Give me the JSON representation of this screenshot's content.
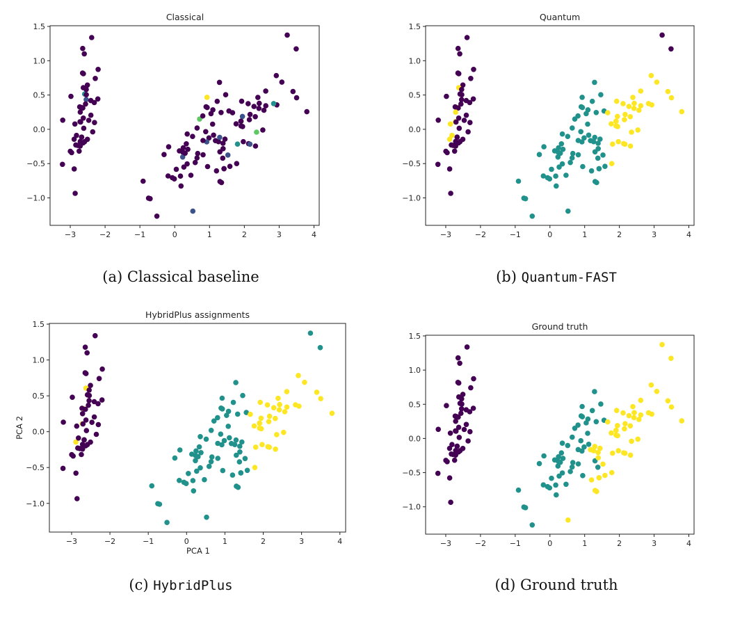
{
  "chart_data": {
    "type": "scatter",
    "xlim": [
      -3.58,
      4.15
    ],
    "ylim": [
      -1.4,
      1.51
    ],
    "xticks": [
      -3,
      -2,
      -1,
      0,
      1,
      2,
      3,
      4
    ],
    "xtick_labels": [
      "−3",
      "−2",
      "−1",
      "0",
      "1",
      "2",
      "3",
      "4"
    ],
    "yticks": [
      -1.0,
      -0.5,
      0.0,
      0.5,
      1.0,
      1.5
    ],
    "ytick_labels": [
      "−1.0",
      "−0.5",
      "0.0",
      "0.5",
      "1.0",
      "1.5"
    ],
    "grid": false,
    "points": {
      "x": [
        -2.684,
        -2.714,
        -2.889,
        -2.745,
        -2.729,
        -2.281,
        -2.821,
        -2.626,
        -2.887,
        -2.673,
        -2.507,
        -2.613,
        -2.787,
        -3.225,
        -2.644,
        -2.386,
        -2.624,
        -2.648,
        -2.199,
        -2.588,
        -2.31,
        -2.544,
        -3.216,
        -2.303,
        -2.356,
        -2.508,
        -2.469,
        -2.562,
        -2.64,
        -2.632,
        -2.588,
        -2.41,
        -2.648,
        -2.597,
        -2.673,
        -2.867,
        -2.625,
        -2.981,
        -2.96,
        -2.72,
        -2.714,
        -2.858,
        -2.998,
        -2.408,
        -2.207,
        -2.715,
        -2.539,
        -2.84,
        -2.542,
        -2.704,
        1.285,
        0.933,
        1.464,
        0.181,
        1.087,
        0.64,
        1.095,
        -0.751,
        1.043,
        -0.01,
        -0.511,
        0.512,
        0.264,
        0.984,
        -0.174,
        0.928,
        0.66,
        0.236,
        0.944,
        0.045,
        1.116,
        0.358,
        1.298,
        0.921,
        0.715,
        0.9,
        1.332,
        1.558,
        0.813,
        -0.306,
        -0.068,
        -0.19,
        0.136,
        1.38,
        0.588,
        0.807,
        1.22,
        0.815,
        0.246,
        0.166,
        0.464,
        0.89,
        0.23,
        -0.705,
        0.357,
        0.332,
        0.376,
        0.642,
        -0.907,
        0.299,
        2.531,
        1.415,
        2.616,
        1.971,
        2.35,
        3.397,
        0.521,
        2.933,
        2.32,
        2.917,
        1.662,
        1.803,
        2.165,
        1.344,
        1.585,
        1.905,
        1.949,
        3.488,
        3.795,
        1.3,
        2.428,
        1.199,
        3.5,
        1.388,
        2.276,
        2.614,
        1.258,
        1.291,
        2.123,
        2.388,
        2.841,
        3.231,
        2.16,
        1.443,
        1.78,
        3.077,
        2.145,
        1.905,
        1.169,
        2.108,
        2.314,
        1.922,
        1.415,
        2.563,
        2.419,
        1.944,
        1.527,
        1.764,
        1.901,
        1.39
      ],
      "y": [
        0.319,
        -0.177,
        -0.145,
        -0.318,
        0.327,
        0.741,
        -0.089,
        0.163,
        -0.578,
        -0.114,
        0.645,
        0.015,
        -0.235,
        -0.511,
        1.178,
        1.338,
        0.811,
        0.312,
        0.873,
        0.514,
        0.391,
        0.433,
        0.133,
        0.099,
        -0.037,
        -0.146,
        0.131,
        0.368,
        0.312,
        -0.197,
        -0.18,
        0.419,
        0.82,
        1.1,
        -0.114,
        0.077,
        0.607,
        0.48,
        -0.34,
        0.11,
        0.251,
        -0.934,
        -0.32,
        0.205,
        0.442,
        -0.243,
        0.504,
        -0.228,
        0.58,
        0.107,
        0.685,
        0.318,
        0.504,
        -0.826,
        0.075,
        -0.418,
        0.284,
        -1.004,
        0.228,
        -0.723,
        -1.266,
        -0.104,
        -0.55,
        -0.125,
        -0.255,
        0.467,
        -0.353,
        -0.333,
        -0.543,
        -0.583,
        -0.085,
        -0.069,
        -0.328,
        -0.183,
        0.149,
        0.329,
        0.245,
        0.267,
        -0.163,
        -0.368,
        -0.705,
        -0.68,
        -0.314,
        -0.421,
        -0.484,
        0.195,
        0.408,
        -0.372,
        -0.269,
        -0.682,
        -0.67,
        -0.034,
        -0.404,
        -1.012,
        -0.505,
        -0.212,
        -0.292,
        0.018,
        -0.756,
        -0.349,
        -0.01,
        -0.575,
        0.343,
        -0.18,
        -0.041,
        0.551,
        -1.193,
        0.356,
        -0.244,
        0.783,
        0.242,
        -0.216,
        0.216,
        -0.776,
        -0.54,
        0.119,
        0.041,
        1.172,
        0.257,
        -0.761,
        0.378,
        -0.606,
        0.46,
        -0.204,
        0.333,
        0.558,
        -0.18,
        -0.117,
        -0.21,
        0.465,
        0.375,
        1.374,
        -0.217,
        -0.144,
        -0.5,
        0.688,
        0.14,
        0.049,
        -0.165,
        0.373,
        0.184,
        0.409,
        -0.575,
        0.278,
        0.305,
        0.188,
        -0.375,
        0.079,
        0.117,
        -0.283
      ]
    },
    "panels": [
      {
        "title": "Classical",
        "xlabel": "",
        "ylabel": "",
        "palette": [
          "#440154",
          "#3b528b",
          "#21918c",
          "#5ec962",
          "#fde725"
        ],
        "clusters": "0000000000 0000000002 0100000000 0000000000 0000000000 0000000000 0000040000 0001300000 0000000000 0010000000 0000301000 0200000000 0000000100 2010000000 0000011000",
        "caption_label": "(a)",
        "caption_text": "Classical baseline",
        "caption_mono": false
      },
      {
        "title": "Quantum",
        "xlabel": "",
        "ylabel": "",
        "palette": [
          "#440154",
          "#21918c",
          "#fde725"
        ],
        "clusters": "2020002000 0000000000 0000000000 0000022002 2000000000 1111111111 1111111111 1111111111 1111111111 1111111111 2122221222 2221122021 2121221122 2021222212 2212221221",
        "caption_label": "(b)",
        "caption_text": "Quantum-FAST",
        "caption_mono": true
      },
      {
        "title": "HybridPlus assignments",
        "xlabel": "PCA 1",
        "ylabel": "PCA 2",
        "palette": [
          "#440154",
          "#21918c",
          "#fde725"
        ],
        "clusters": "2020000000 0000000000 0000000000 0000002002 0000000000 1111111111 1111111111 1111111111 1111111111 1111111111 2122221222 2221122121 2121221122 2121222212 2212221221",
        "caption_label": "(c)",
        "caption_text": "HybridPlus",
        "caption_mono": true
      },
      {
        "title": "Ground truth",
        "xlabel": "",
        "ylabel": "",
        "palette": [
          "#440154",
          "#21918c",
          "#fde725"
        ],
        "clusters": "0000000000 0000000000 0000000000 0000000000 0000000000 1111111111 1111111111 1111111111 1111111111 1111111111 2222222222 2222222222 2222222222 2222222222 2222222222",
        "caption_label": "(d)",
        "caption_text": "Ground truth",
        "caption_mono": false
      }
    ]
  }
}
